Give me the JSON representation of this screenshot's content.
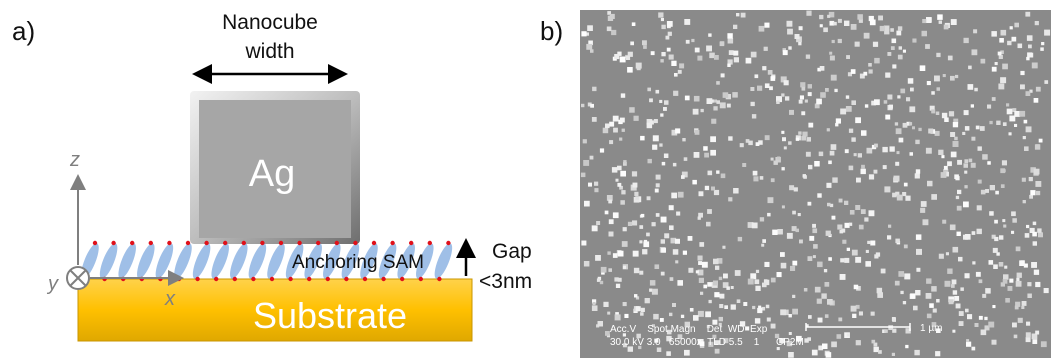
{
  "panel_a": {
    "label": "a)",
    "nanocube_width_line1": "Nanocube",
    "nanocube_width_line2": "width",
    "cube_label": "Ag",
    "axis_z": "z",
    "axis_y": "y",
    "axis_x": "x",
    "sam_label": "Anchoring SAM",
    "gap_line1": "Gap",
    "gap_line2": "<3nm",
    "substrate_label": "Substrate"
  },
  "panel_b": {
    "label": "b)",
    "sem_info_line1": "Acc.V    Spot Magn    Det  WD  Exp",
    "sem_info_line2": "30.0 kV 3.0   65000x  TLD 5.5    1      CP2M",
    "scale_bar_label": "1 µm"
  },
  "colors": {
    "substrate": "#ffc000",
    "cube": "#a6a6a6",
    "molecule": "#8eb4e3",
    "molecule_dot": "#e0101a",
    "sem_background": "#8a8a8a"
  }
}
